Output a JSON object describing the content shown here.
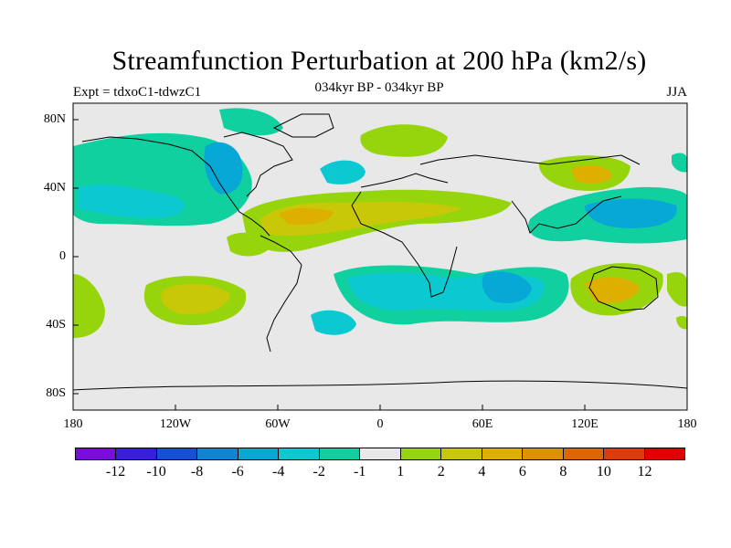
{
  "title": "Streamfunction Perturbation at 200 hPa (km2/s)",
  "subtitle_left": "Expt = tdxoC1-tdwzC1",
  "subtitle_center": "034kyr BP - 034kyr BP",
  "subtitle_right": "JJA",
  "lat_labels": [
    "80N",
    "40N",
    "0",
    "40S",
    "80S"
  ],
  "lon_labels": [
    "180",
    "120W",
    "60W",
    "0",
    "60E",
    "120E",
    "180"
  ],
  "colorbar": {
    "colors": [
      "#7a0ce0",
      "#3a1ee0",
      "#1650d6",
      "#0f86d4",
      "#08a8d6",
      "#0cc8d0",
      "#10d0a0",
      "#e8e8e8",
      "#96d40c",
      "#c9c808",
      "#ddb000",
      "#e09000",
      "#e06400",
      "#e03a08",
      "#e00000"
    ],
    "labels": [
      "-12",
      "-10",
      "-8",
      "-6",
      "-4",
      "-2",
      "-1",
      "1",
      "2",
      "4",
      "6",
      "8",
      "10",
      "12"
    ]
  },
  "palette": {
    "background": "#e8e8e8",
    "cyan": "#0cc8d0",
    "aqua": "#10d0a0",
    "lightblue": "#08a8d6",
    "green": "#96d40c",
    "olive": "#c9c808",
    "gold": "#ddb000"
  }
}
